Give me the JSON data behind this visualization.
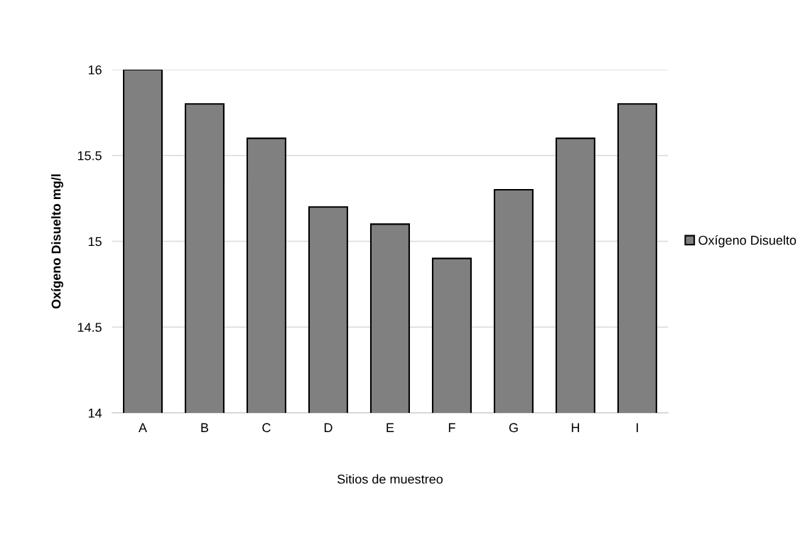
{
  "chart_data": {
    "type": "bar",
    "xlabel": "Sitios de muestreo",
    "ylabel": "Oxígeno Disuelto mg/l",
    "categories": [
      "A",
      "B",
      "C",
      "D",
      "E",
      "F",
      "G",
      "H",
      "I"
    ],
    "series": [
      {
        "name": "Oxígeno Disuelto",
        "color": "#808080",
        "values": [
          16,
          15.8,
          15.6,
          15.2,
          15.1,
          14.9,
          15.3,
          15.6,
          15.8
        ]
      }
    ],
    "ylim": [
      14,
      16
    ],
    "yticks": [
      14,
      14.5,
      15,
      15.5,
      16
    ],
    "grid": "y",
    "legend": "right"
  }
}
